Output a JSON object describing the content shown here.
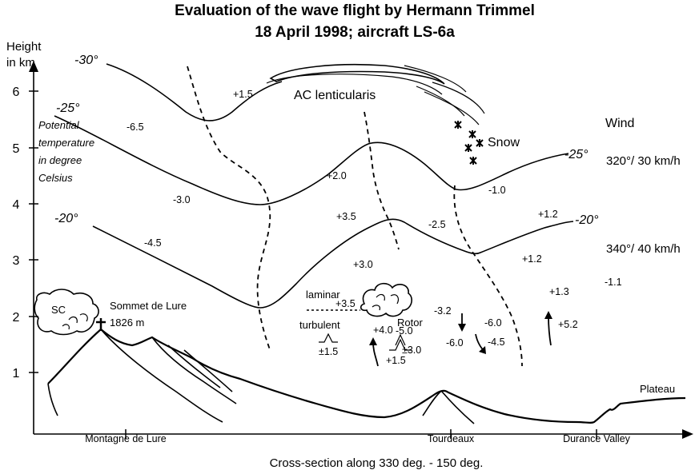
{
  "title": {
    "line1": "Evaluation of the wave flight by Hermann Trimmel",
    "line2": "18 April 1998; aircraft LS-6a"
  },
  "y_axis": {
    "label_line1": "Height",
    "label_line2": "in km",
    "ticks": [
      "6",
      "5",
      "4",
      "3",
      "2",
      "1"
    ]
  },
  "x_axis": {
    "locations": [
      "Montagne de Lure",
      "Tourdeaux",
      "Durance Valley"
    ],
    "caption": "Cross-section along 330 deg. - 150 deg."
  },
  "isotherms": [
    "-30°",
    "-25°",
    "-20°",
    "-25°",
    "-20°"
  ],
  "legend_text": [
    "Potential",
    "temperature",
    "in degree",
    "Celsius"
  ],
  "labels": {
    "ac_lenticularis": "AC lenticularis",
    "snow": "Snow",
    "wind": "Wind",
    "wind_upper": "320°/ 30 km/h",
    "wind_lower": "340°/ 40 km/h",
    "sc": "SC",
    "summit_name": "Sommet de Lure",
    "summit_height": "1826 m",
    "laminar": "laminar",
    "turbulent": "turbulent",
    "rotor": "Rotor",
    "plateau": "Plateau",
    "turb_value": "±1.5",
    "rotor_value": "±3.0"
  },
  "vertical_speeds": [
    "+1.5",
    "-6.5",
    "-3.0",
    "-4.5",
    "+2.0",
    "+3.5",
    "-2.5",
    "-1.0",
    "+1.2",
    "+1.2",
    "+3.0",
    "+3.5",
    "+1.3",
    "-1.1",
    "-3.2",
    "+4.0",
    "-5.0",
    "-6.0",
    "-4.5",
    "+1.5",
    "+5.2",
    "-6.0"
  ]
}
